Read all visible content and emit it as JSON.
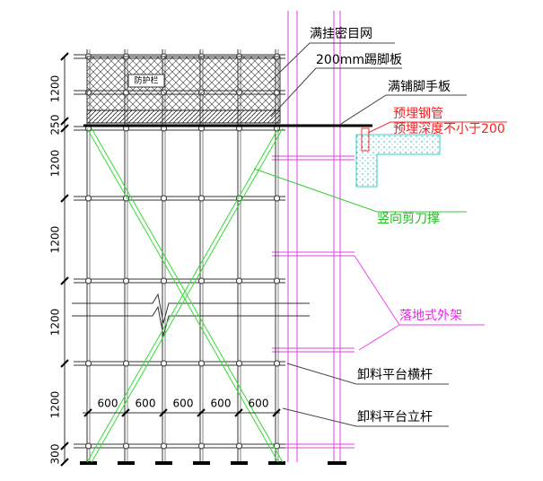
{
  "labels": {
    "net": "满挂密目网",
    "toe_board": "200mm踢脚板",
    "deck": "满铺脚手板",
    "embedded_pipe": "预埋钢管",
    "embed_depth": "预埋深度不小于200",
    "scissor_brace": "竖向剪刀撑",
    "scaffold": "落地式外架",
    "platform_ledger": "卸料平台横杆",
    "platform_post": "卸料平台立杆",
    "guard": "防护栏"
  },
  "dimensions": {
    "vertical": [
      "1200",
      "250",
      "1200",
      "1200",
      "1200",
      "1200",
      "300"
    ],
    "horizontal": [
      "600",
      "600",
      "600",
      "600",
      "600"
    ]
  }
}
